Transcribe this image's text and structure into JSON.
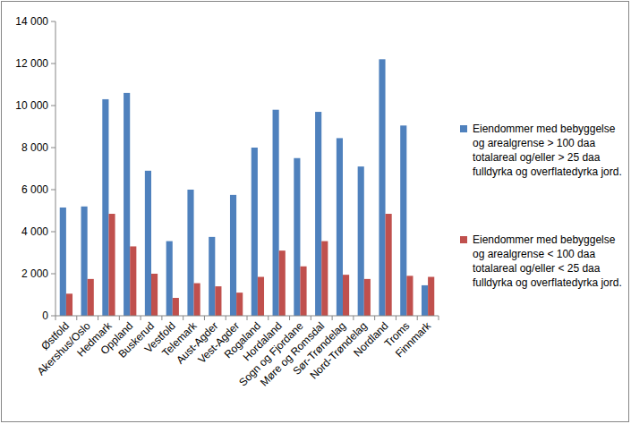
{
  "chart_data": {
    "type": "bar",
    "categories": [
      "Østfold",
      "Akershus/Oslo",
      "Hedmark",
      "Oppland",
      "Buskerud",
      "Vestfold",
      "Telemark",
      "Aust-Agder",
      "Vest-Agder",
      "Rogaland",
      "Hordaland",
      "Sogn og Fjordane",
      "Møre og Romsdal",
      "Sør-Trøndelag",
      "Nord-Trøndelag",
      "Nordland",
      "Troms",
      "Finnmark"
    ],
    "series": [
      {
        "name": "Eiendommer med bebyggelse og arealgrense > 100 daa totalareal og/eller > 25 daa fulldyrka og overflatedyrka jord.",
        "color": "#4f81bd",
        "values": [
          5150,
          5200,
          10300,
          10600,
          6900,
          3550,
          6000,
          3750,
          5750,
          8000,
          9800,
          7500,
          9700,
          8450,
          7100,
          12200,
          9050,
          1450
        ]
      },
      {
        "name": "Eiendommer med bebyggelse og arealgrense < 100 daa totalareal og/eller < 25 daa fulldyrka og overflatedyrka jord.",
        "color": "#c0504d",
        "values": [
          1050,
          1750,
          4850,
          3300,
          2000,
          850,
          1550,
          1400,
          1100,
          1850,
          3100,
          2350,
          3550,
          1950,
          1750,
          4850,
          1900,
          1850
        ]
      }
    ],
    "ylim": [
      0,
      14000
    ],
    "yticks": [
      0,
      {
        "value": 2000,
        "label": "2 000"
      },
      {
        "value": 4000,
        "label": "4 000"
      },
      {
        "value": 6000,
        "label": "6 000"
      },
      {
        "value": 8000,
        "label": "8 000"
      },
      {
        "value": 10000,
        "label": "10 000"
      },
      {
        "value": 12000,
        "label": "12 000"
      },
      {
        "value": 14000,
        "label": "14 000"
      }
    ],
    "grid": false,
    "legend": "right"
  }
}
